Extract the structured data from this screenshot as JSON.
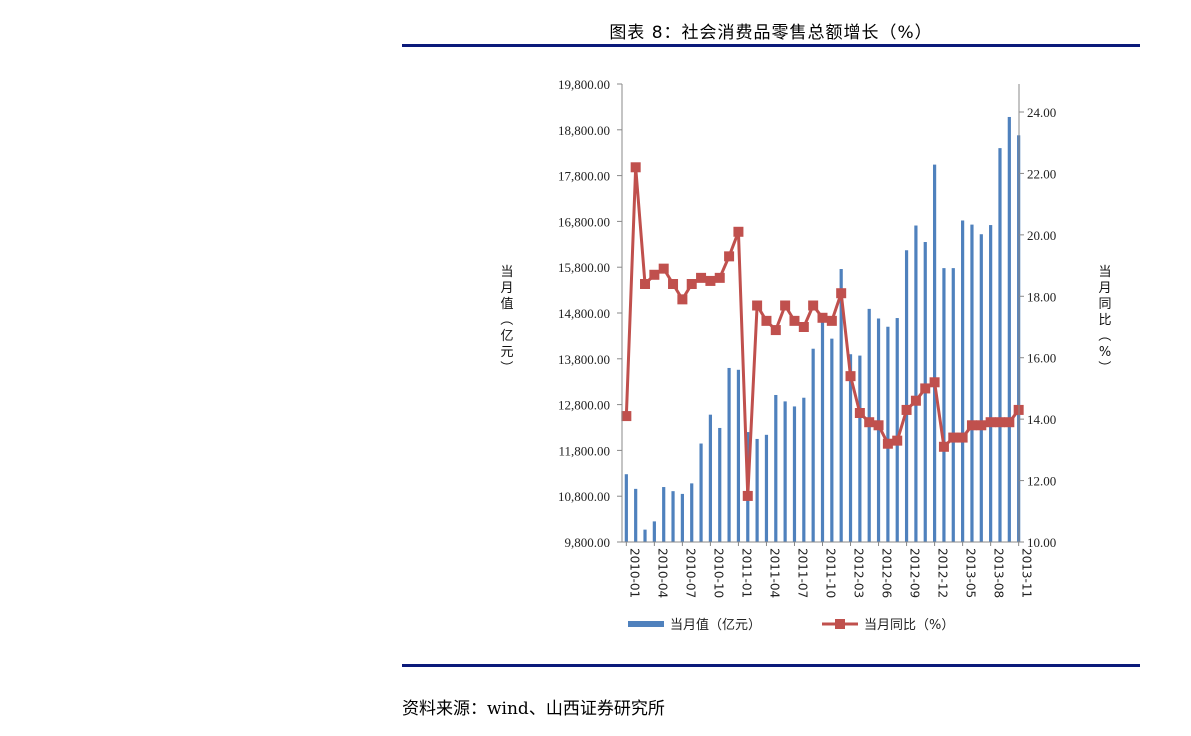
{
  "figure": {
    "title": "图表 8：社会消费品零售总额增长（%）",
    "source": "资料来源：wind、山西证券研究所"
  },
  "chart_data": {
    "type": "bar+line",
    "months": [
      "2010-01",
      "2010-02",
      "2010-03",
      "2010-04",
      "2010-05",
      "2010-06",
      "2010-07",
      "2010-08",
      "2010-09",
      "2010-10",
      "2010-11",
      "2010-12",
      "2011-01",
      "2011-02",
      "2011-03",
      "2011-04",
      "2011-05",
      "2011-06",
      "2011-07",
      "2011-08",
      "2011-09",
      "2011-10",
      "2011-11",
      "2011-12",
      "2012-03",
      "2012-04",
      "2012-05",
      "2012-06",
      "2012-07",
      "2012-08",
      "2012-09",
      "2012-10",
      "2012-11",
      "2012-12",
      "2013-03",
      "2013-04",
      "2013-05",
      "2013-06",
      "2013-07",
      "2013-08",
      "2013-09",
      "2013-10",
      "2013-11"
    ],
    "x_tick_labels": [
      "2010-01",
      "2010-04",
      "2010-07",
      "2010-10",
      "2011-01",
      "2011-04",
      "2011-07",
      "2011-10",
      "2012-03",
      "2012-06",
      "2012-09",
      "2012-12",
      "2013-05",
      "2013-08",
      "2013-11"
    ],
    "x_tick_indices": [
      0,
      3,
      6,
      9,
      12,
      15,
      18,
      21,
      24,
      27,
      30,
      33,
      36,
      39,
      42
    ],
    "series": [
      {
        "name": "当月值（亿元）",
        "type": "bar",
        "axis": "left",
        "color": "#4f81bd",
        "values": [
          11280,
          10960,
          10070,
          10250,
          11000,
          10910,
          10850,
          11080,
          11950,
          12580,
          12290,
          13600,
          13560,
          12200,
          12050,
          12140,
          13010,
          12870,
          12760,
          12950,
          14020,
          14610,
          14240,
          15760,
          13900,
          13870,
          14890,
          14680,
          14500,
          14690,
          16170,
          16710,
          16350,
          18040,
          15780,
          15780,
          16820,
          16730,
          16520,
          16720,
          18400,
          19080,
          18680
        ]
      },
      {
        "name": "当月同比（%）",
        "type": "line",
        "axis": "right",
        "color": "#c0504d",
        "values": [
          14.1,
          22.2,
          18.4,
          18.7,
          18.9,
          18.4,
          17.9,
          18.4,
          18.6,
          18.5,
          18.6,
          19.3,
          20.1,
          11.5,
          17.7,
          17.2,
          16.9,
          17.7,
          17.2,
          17.0,
          17.7,
          17.3,
          17.2,
          18.1,
          15.4,
          14.2,
          13.9,
          13.8,
          13.2,
          13.3,
          14.3,
          14.6,
          15.0,
          15.2,
          13.1,
          13.4,
          13.4,
          13.8,
          13.8,
          13.9,
          13.9,
          13.9,
          14.3
        ]
      }
    ],
    "y_left": {
      "label": "当月值（亿元）",
      "range": [
        9800,
        19800
      ],
      "ticks": [
        "9,800.00",
        "10,800.00",
        "11,800.00",
        "12,800.00",
        "13,800.00",
        "14,800.00",
        "15,800.00",
        "16,800.00",
        "17,800.00",
        "18,800.00",
        "19,800.00"
      ]
    },
    "y_right": {
      "label": "当月同比（%）",
      "range": [
        10,
        24
      ],
      "ticks": [
        "10.00",
        "12.00",
        "14.00",
        "16.00",
        "18.00",
        "20.00",
        "22.00",
        "24.00"
      ]
    },
    "legend": {
      "position": "bottom",
      "items": [
        "当月值（亿元）",
        "当月同比（%）"
      ]
    },
    "grid": false
  }
}
